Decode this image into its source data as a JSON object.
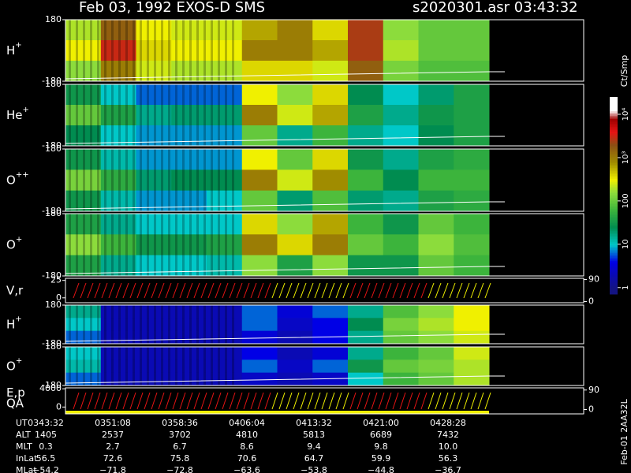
{
  "header": {
    "title": "Feb 03, 1992   EXOS-D SMS",
    "file": "s2020301.asr  03:43:32"
  },
  "panels": [
    {
      "label": "H",
      "sup": "+",
      "yticks": [
        180,
        -180
      ],
      "ylim": [
        -180,
        180
      ],
      "grid": [
        [
          2.3,
          3.2,
          2.5,
          2.4,
          2.4,
          2.8,
          3.0,
          2.6,
          3.4,
          2.2,
          2.0,
          2.0
        ],
        [
          2.5,
          3.5,
          2.6,
          2.5,
          2.5,
          3.0,
          3.0,
          2.8,
          3.4,
          2.3,
          2.0,
          2.0
        ],
        [
          2.2,
          3.0,
          2.4,
          2.3,
          2.3,
          2.6,
          2.6,
          2.4,
          3.2,
          2.1,
          1.9,
          1.9
        ]
      ]
    },
    {
      "label": "He",
      "sup": "+",
      "yticks": [
        180,
        -180
      ],
      "ylim": [
        -180,
        180
      ],
      "grid": [
        [
          1.5,
          1.0,
          0.8,
          0.8,
          0.8,
          2.5,
          2.2,
          2.6,
          1.4,
          1.0,
          1.3,
          1.6
        ],
        [
          2.0,
          1.6,
          1.2,
          1.3,
          1.3,
          3.0,
          2.4,
          2.8,
          1.6,
          1.2,
          1.5,
          1.6
        ],
        [
          1.4,
          1.0,
          0.9,
          0.9,
          0.9,
          2.0,
          1.2,
          1.8,
          1.2,
          1.0,
          1.4,
          1.6
        ]
      ]
    },
    {
      "label": "O",
      "sup": "++",
      "yticks": [
        180,
        -180
      ],
      "ylim": [
        -180,
        180
      ],
      "grid": [
        [
          1.5,
          1.1,
          0.9,
          0.9,
          0.9,
          2.5,
          2.0,
          2.6,
          1.5,
          1.2,
          1.6,
          1.7
        ],
        [
          2.1,
          1.7,
          1.3,
          1.4,
          1.4,
          3.0,
          2.4,
          2.9,
          1.8,
          1.4,
          1.8,
          1.8
        ],
        [
          1.5,
          1.1,
          0.9,
          0.9,
          1.0,
          2.0,
          1.3,
          1.9,
          1.3,
          1.2,
          1.6,
          1.7
        ]
      ]
    },
    {
      "label": "O",
      "sup": "+",
      "yticks": [
        180,
        -180
      ],
      "ylim": [
        -180,
        180
      ],
      "grid": [
        [
          1.6,
          1.2,
          1.0,
          1.0,
          1.0,
          2.6,
          2.2,
          2.8,
          1.8,
          1.5,
          2.0,
          1.8
        ],
        [
          2.2,
          1.8,
          1.5,
          1.5,
          1.6,
          3.0,
          2.6,
          3.0,
          2.0,
          1.8,
          2.2,
          1.9
        ],
        [
          1.6,
          1.2,
          1.0,
          1.0,
          1.1,
          2.2,
          1.6,
          2.2,
          1.5,
          1.5,
          2.0,
          1.8
        ]
      ]
    },
    {
      "label": "V,r",
      "yticks": [
        25,
        0
      ],
      "ylim": [
        -7,
        28
      ],
      "y2ticks": [
        90,
        0
      ],
      "y2lim": [
        -5,
        95
      ]
    },
    {
      "label": "H",
      "sup": "+",
      "yticks": [
        180,
        -180
      ],
      "ylim": [
        -180,
        180
      ],
      "grid": [
        [
          1.2,
          0.3,
          0.3,
          0.3,
          0.3,
          0.8,
          0.5,
          0.8,
          1.2,
          1.9,
          2.2,
          2.5
        ],
        [
          1.0,
          0.3,
          0.3,
          0.3,
          0.3,
          0.8,
          0.4,
          0.6,
          1.4,
          2.1,
          2.3,
          2.5
        ],
        [
          0.8,
          0.3,
          0.3,
          0.3,
          0.3,
          0.5,
          0.3,
          0.6,
          1.2,
          2.0,
          2.2,
          2.4
        ]
      ]
    },
    {
      "label": "O",
      "sup": "+",
      "yticks": [
        180,
        -180
      ],
      "ylim": [
        -180,
        180
      ],
      "grid": [
        [
          1.0,
          0.3,
          0.3,
          0.3,
          0.3,
          0.6,
          0.3,
          0.5,
          1.2,
          1.8,
          2.0,
          2.4
        ],
        [
          1.1,
          0.3,
          0.3,
          0.3,
          0.3,
          0.8,
          0.4,
          0.8,
          1.5,
          2.0,
          2.1,
          2.3
        ],
        [
          0.8,
          0.3,
          0.3,
          0.3,
          0.3,
          0.4,
          0.3,
          0.4,
          1.0,
          1.8,
          2.0,
          2.3
        ]
      ]
    },
    {
      "label": "E,p",
      "label2": "QA",
      "yticks": [
        4000,
        0
      ],
      "ylim": [
        -1500,
        4200
      ],
      "y2ticks": [
        90,
        0
      ],
      "y2lim": [
        -20,
        100
      ]
    }
  ],
  "colorbar": {
    "label": "Ct/Smp",
    "lim": [
      -0.15,
      4.4
    ],
    "ticks": [
      {
        "value": 4,
        "label": "10⁴"
      },
      {
        "value": 3,
        "label": "10³"
      },
      {
        "value": 2,
        "label": "100"
      },
      {
        "value": 1,
        "label": "10"
      },
      {
        "value": 0,
        "label": "1"
      }
    ]
  },
  "table": {
    "rows": [
      [
        "UT",
        "0343:32",
        "0351:08",
        "0358:36",
        "0406:04",
        "0413:32",
        "0421:00",
        "0428:28"
      ],
      [
        "ALT",
        "1405",
        "2537",
        "3702",
        "4810",
        "5813",
        "6689",
        "7432"
      ],
      [
        "MLT",
        "0.3",
        "2.7",
        "6.7",
        "8.6",
        "9.4",
        "9.8",
        "10.0"
      ],
      [
        "InLat",
        "56.5",
        "72.6",
        "75.8",
        "70.6",
        "64.7",
        "59.9",
        "56.3"
      ],
      [
        "MLat",
        "−54.2",
        "−71.8",
        "−72.8",
        "−63.6",
        "−53.8",
        "−44.8",
        "−36.7"
      ]
    ]
  },
  "footer": "Feb-01 2AA32L"
}
